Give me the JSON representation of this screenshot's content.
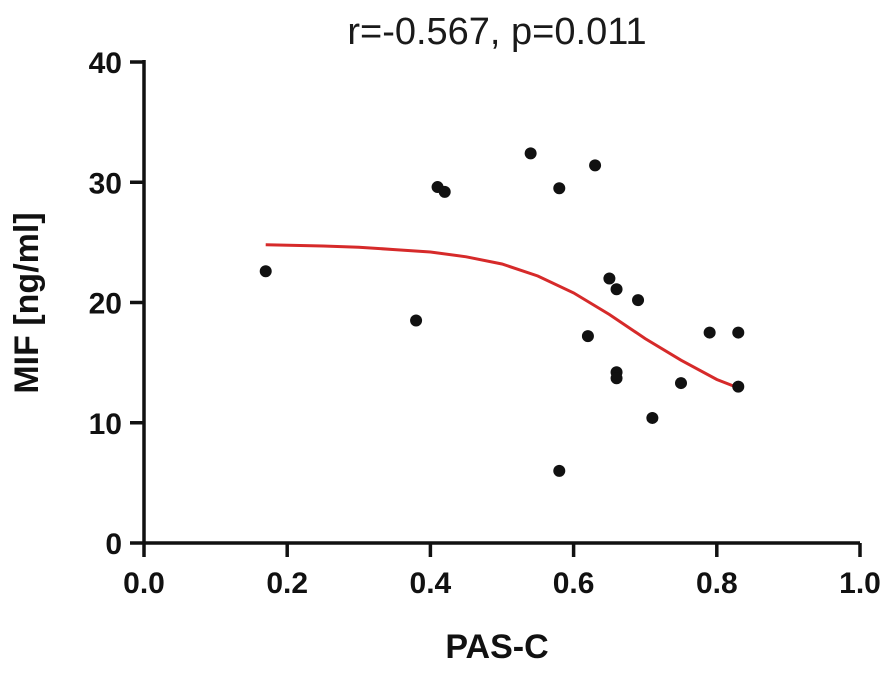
{
  "chart_data": {
    "type": "scatter",
    "title": "r=-0.567, p=0.011",
    "xlabel": "PAS-C",
    "ylabel": "MIF [ng/ml]",
    "xlim": [
      0.0,
      1.0
    ],
    "ylim": [
      0,
      40
    ],
    "xticks": [
      "0.0",
      "0.2",
      "0.4",
      "0.6",
      "0.8",
      "1.0"
    ],
    "xtick_values": [
      0.0,
      0.2,
      0.4,
      0.6,
      0.8,
      1.0
    ],
    "yticks": [
      "0",
      "10",
      "20",
      "30",
      "40"
    ],
    "ytick_values": [
      0,
      10,
      20,
      30,
      40
    ],
    "grid": false,
    "points": [
      {
        "x": 0.17,
        "y": 22.6
      },
      {
        "x": 0.38,
        "y": 18.5
      },
      {
        "x": 0.41,
        "y": 29.6
      },
      {
        "x": 0.42,
        "y": 29.2
      },
      {
        "x": 0.54,
        "y": 32.4
      },
      {
        "x": 0.58,
        "y": 29.5
      },
      {
        "x": 0.58,
        "y": 6.0
      },
      {
        "x": 0.62,
        "y": 17.2
      },
      {
        "x": 0.63,
        "y": 31.4
      },
      {
        "x": 0.65,
        "y": 22.0
      },
      {
        "x": 0.66,
        "y": 21.1
      },
      {
        "x": 0.66,
        "y": 14.2
      },
      {
        "x": 0.66,
        "y": 13.7
      },
      {
        "x": 0.69,
        "y": 20.2
      },
      {
        "x": 0.71,
        "y": 10.4
      },
      {
        "x": 0.75,
        "y": 13.3
      },
      {
        "x": 0.79,
        "y": 17.5
      },
      {
        "x": 0.83,
        "y": 17.5
      },
      {
        "x": 0.83,
        "y": 13.0
      }
    ],
    "fit_line": {
      "color": "#d62a2a",
      "x": [
        0.17,
        0.25,
        0.3,
        0.35,
        0.4,
        0.45,
        0.5,
        0.55,
        0.6,
        0.65,
        0.7,
        0.75,
        0.8,
        0.83
      ],
      "y": [
        24.8,
        24.7,
        24.6,
        24.4,
        24.2,
        23.8,
        23.2,
        22.2,
        20.8,
        19.0,
        17.0,
        15.2,
        13.6,
        12.9
      ]
    },
    "point_color": "#111111"
  }
}
